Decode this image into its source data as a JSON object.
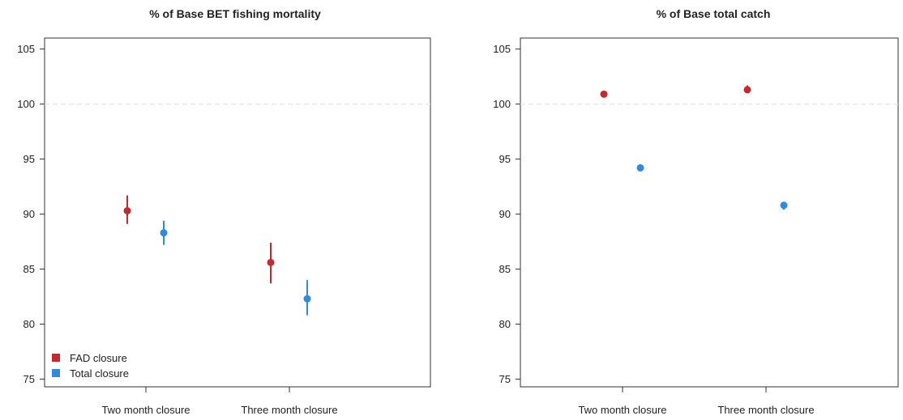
{
  "chart_data": [
    {
      "type": "scatter",
      "title": "% of Base BET fishing mortality",
      "xlabel": "",
      "ylabel": "",
      "categories": [
        "Two month closure",
        "Three month closure"
      ],
      "yticks": [
        75,
        80,
        85,
        90,
        95,
        100,
        105
      ],
      "ylim": [
        74.3,
        106
      ],
      "reference_line": 100,
      "grid": false,
      "legend_position": "bottom-left",
      "series": [
        {
          "name": "FAD closure",
          "color": "#c8282d",
          "values": [
            90.3,
            85.6
          ],
          "lower": [
            89.1,
            83.7
          ],
          "upper": [
            91.7,
            87.4
          ]
        },
        {
          "name": "Total closure",
          "color": "#2f8be0",
          "values": [
            88.3,
            82.3
          ],
          "lower": [
            87.2,
            80.8
          ],
          "upper": [
            89.4,
            84.0
          ]
        }
      ]
    },
    {
      "type": "scatter",
      "title": "% of Base total catch",
      "xlabel": "",
      "ylabel": "",
      "categories": [
        "Two month closure",
        "Three month closure"
      ],
      "yticks": [
        75,
        80,
        85,
        90,
        95,
        100,
        105
      ],
      "ylim": [
        74.3,
        106
      ],
      "reference_line": 100,
      "grid": false,
      "legend_position": "none",
      "series": [
        {
          "name": "FAD closure",
          "color": "#c8282d",
          "values": [
            100.9,
            101.3
          ],
          "lower": [
            100.6,
            101.0
          ],
          "upper": [
            101.2,
            101.7
          ]
        },
        {
          "name": "Total closure",
          "color": "#2f8be0",
          "values": [
            94.2,
            90.8
          ],
          "lower": [
            93.9,
            90.4
          ],
          "upper": [
            94.4,
            91.1
          ]
        }
      ]
    }
  ]
}
